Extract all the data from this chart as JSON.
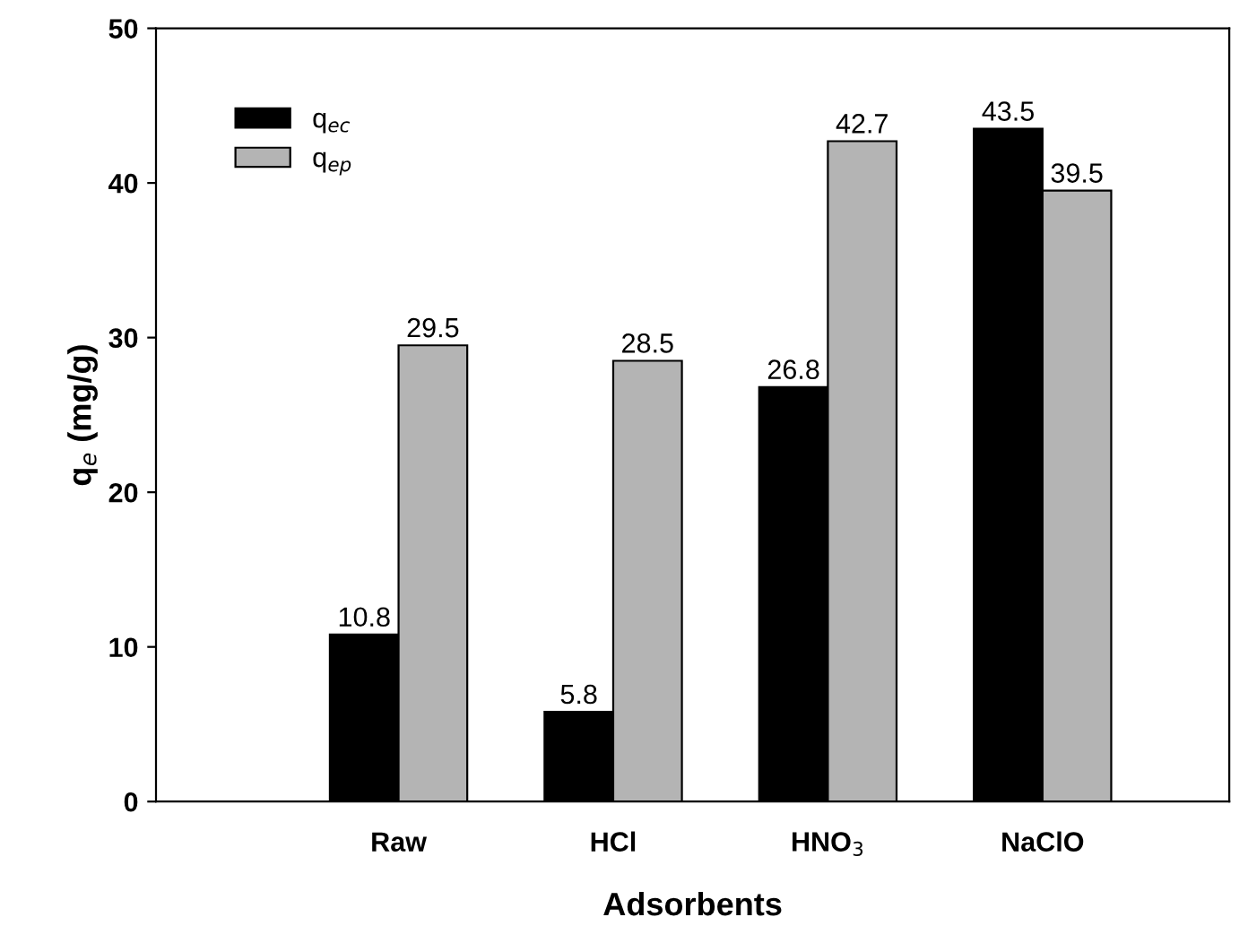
{
  "chart_data": {
    "type": "bar",
    "xlabel": "Adsorbents",
    "ylabel": "q$_{e}$ (mg/g)",
    "categories": [
      "Raw",
      "HCl",
      "HNO$_{3}$",
      "NaClO"
    ],
    "series": [
      {
        "name": "q$_{ec}$",
        "color": "#000000",
        "values": [
          10.8,
          5.8,
          26.8,
          43.5
        ]
      },
      {
        "name": "q$_{ep}$",
        "color": "#b4b4b4",
        "values": [
          29.5,
          28.5,
          42.7,
          39.5
        ]
      }
    ],
    "ylim": [
      0,
      50
    ],
    "yticks": [
      0,
      10,
      20,
      30,
      40,
      50
    ],
    "grid": false,
    "legend": "top left",
    "data_labels": true
  }
}
